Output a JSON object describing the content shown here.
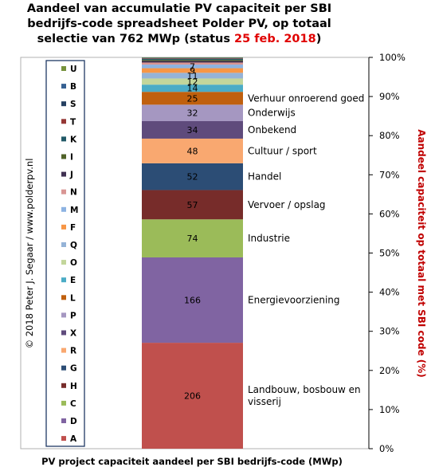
{
  "title": {
    "line1": "Aandeel van accumulatie  PV capaciteit  per SBI",
    "line2": "bedrijfs-code spreadsheet Polder PV, op totaal",
    "line3_pre": "selectie van 762 MWp (status ",
    "line3_date": "25 feb. 2018",
    "line3_post": ")"
  },
  "watermark": "© 2018 Peter J. Segaar / www.polderpv.nl",
  "colors": {
    "title_highlight": "#e00000",
    "y_axis_title": "#c00000"
  },
  "chart_data": {
    "type": "bar",
    "stacked": "percent",
    "xlabel": "PV project capaciteit aandeel per SBI bedrijfs-code (MWp)",
    "ylabel": "Aandeel capaciteit op totaal met SBI code (%)",
    "ylim": [
      0,
      100
    ],
    "y_ticks": [
      "0%",
      "10%",
      "20%",
      "30%",
      "40%",
      "50%",
      "60%",
      "70%",
      "80%",
      "90%",
      "100%"
    ],
    "y_axis_position": "right",
    "total": 762,
    "grid": false,
    "legend_position": "left",
    "series": [
      {
        "name": "A",
        "value": 206,
        "label": "206",
        "category": "Landbouw, bosbouw en visserij",
        "category_lines": [
          "Landbouw, bosbouw en",
          "visserij"
        ],
        "color": "#c0504d"
      },
      {
        "name": "D",
        "value": 166,
        "label": "166",
        "category": "Energievoorziening",
        "category_lines": [
          "Energievoorziening"
        ],
        "color": "#8064a2"
      },
      {
        "name": "C",
        "value": 74,
        "label": "74",
        "category": "Industrie",
        "category_lines": [
          "Industrie"
        ],
        "color": "#9bbb59"
      },
      {
        "name": "H",
        "value": 57,
        "label": "57",
        "category": "Vervoer / opslag",
        "category_lines": [
          "Vervoer / opslag"
        ],
        "color": "#772c2a"
      },
      {
        "name": "G",
        "value": 52,
        "label": "52",
        "category": "Handel",
        "category_lines": [
          "Handel"
        ],
        "color": "#2c4d75"
      },
      {
        "name": "R",
        "value": 48,
        "label": "48",
        "category": "Cultuur / sport",
        "category_lines": [
          "Cultuur / sport"
        ],
        "color": "#f9a870"
      },
      {
        "name": "X",
        "value": 34,
        "label": "34",
        "category": "Onbekend",
        "category_lines": [
          "Onbekend"
        ],
        "color": "#5f4b7c"
      },
      {
        "name": "P",
        "value": 32,
        "label": "32",
        "category": "Onderwijs",
        "category_lines": [
          "Onderwijs"
        ],
        "color": "#a597c1"
      },
      {
        "name": "L",
        "value": 25,
        "label": "25",
        "category": "Verhuur onroerend goed",
        "category_lines": [
          "Verhuur onroerend goed"
        ],
        "color": "#c0600e"
      },
      {
        "name": "E",
        "value": 14,
        "label": "14",
        "category": "",
        "category_lines": [],
        "color": "#4bacc6"
      },
      {
        "name": "O",
        "value": 12,
        "label": "12",
        "category": "",
        "category_lines": [],
        "color": "#c3d69b"
      },
      {
        "name": "Q",
        "value": 11,
        "label": "11",
        "category": "",
        "category_lines": [],
        "color": "#95b3d7"
      },
      {
        "name": "F",
        "value": 9,
        "label": "9",
        "category": "",
        "category_lines": [],
        "color": "#f79646"
      },
      {
        "name": "M",
        "value": 7,
        "label": "7",
        "category": "",
        "category_lines": [],
        "color": "#8db3e2"
      },
      {
        "name": "N",
        "value": 4,
        "label": "",
        "category": "",
        "category_lines": [],
        "color": "#d99694"
      },
      {
        "name": "J",
        "value": 3,
        "label": "",
        "category": "",
        "category_lines": [],
        "color": "#403152"
      },
      {
        "name": "I",
        "value": 2,
        "label": "",
        "category": "",
        "category_lines": [],
        "color": "#4f6228"
      },
      {
        "name": "K",
        "value": 2,
        "label": "",
        "category": "",
        "category_lines": [],
        "color": "#215967"
      },
      {
        "name": "T",
        "value": 1,
        "label": "",
        "category": "",
        "category_lines": [],
        "color": "#953735"
      },
      {
        "name": "S",
        "value": 1,
        "label": "",
        "category": "",
        "category_lines": [],
        "color": "#254061"
      },
      {
        "name": "B",
        "value": 0.5,
        "label": "",
        "category": "",
        "category_lines": [],
        "color": "#366092"
      },
      {
        "name": "U",
        "value": 0.5,
        "label": "",
        "category": "",
        "category_lines": [],
        "color": "#76923c"
      }
    ],
    "legend_order": [
      "U",
      "B",
      "S",
      "T",
      "K",
      "I",
      "J",
      "N",
      "M",
      "F",
      "Q",
      "O",
      "E",
      "L",
      "P",
      "X",
      "R",
      "G",
      "H",
      "C",
      "D",
      "A"
    ]
  }
}
